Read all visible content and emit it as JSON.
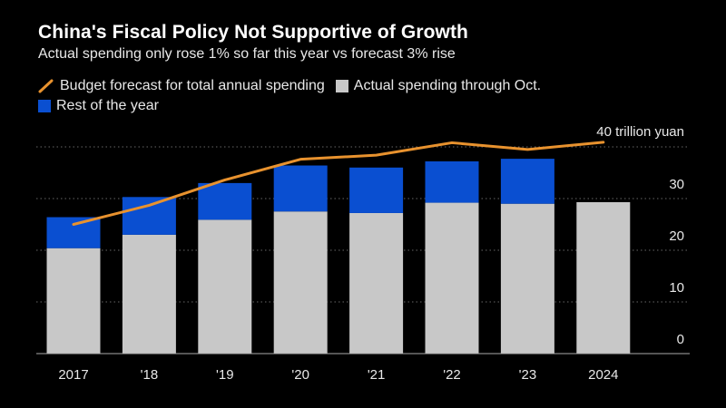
{
  "title": "China's Fiscal Policy Not Supportive of Growth",
  "subtitle": "Actual spending only rose 1% so far this year vs forecast 3% rise",
  "colors": {
    "background": "#000000",
    "actual": "#c8c8c8",
    "rest": "#0a4fd1",
    "forecast": "#e8922e",
    "grid": "#666666",
    "text": "#e8e8e8"
  },
  "legend": {
    "forecast": "Budget forecast for total annual spending",
    "actual": "Actual spending through Oct.",
    "rest": "Rest of the year"
  },
  "chart_data": {
    "type": "bar",
    "stacked": true,
    "title": "China's Fiscal Policy Not Supportive of Growth",
    "subtitle": "Actual spending only rose 1% so far this year vs forecast 3% rise",
    "categories": [
      "2017",
      "'18",
      "'19",
      "'20",
      "'21",
      "'22",
      "'23",
      "2024"
    ],
    "series": [
      {
        "name": "Actual spending through Oct.",
        "values": [
          20.4,
          23.0,
          25.9,
          27.5,
          27.2,
          29.2,
          29.0,
          29.3
        ]
      },
      {
        "name": "Rest of the year",
        "values": [
          6.0,
          7.3,
          7.1,
          8.9,
          8.8,
          8.0,
          8.7,
          null
        ]
      }
    ],
    "line": {
      "name": "Budget forecast for total annual spending",
      "values": [
        25.0,
        28.7,
        33.6,
        37.6,
        38.4,
        40.8,
        39.5,
        40.9
      ]
    },
    "annotation": "40 trillion yuan",
    "ylim": [
      0,
      40
    ],
    "yticks": [
      0,
      10,
      20,
      30
    ],
    "ytick_labels": [
      "0",
      "10",
      "20",
      "30"
    ],
    "xlabel": "",
    "ylabel": ""
  }
}
